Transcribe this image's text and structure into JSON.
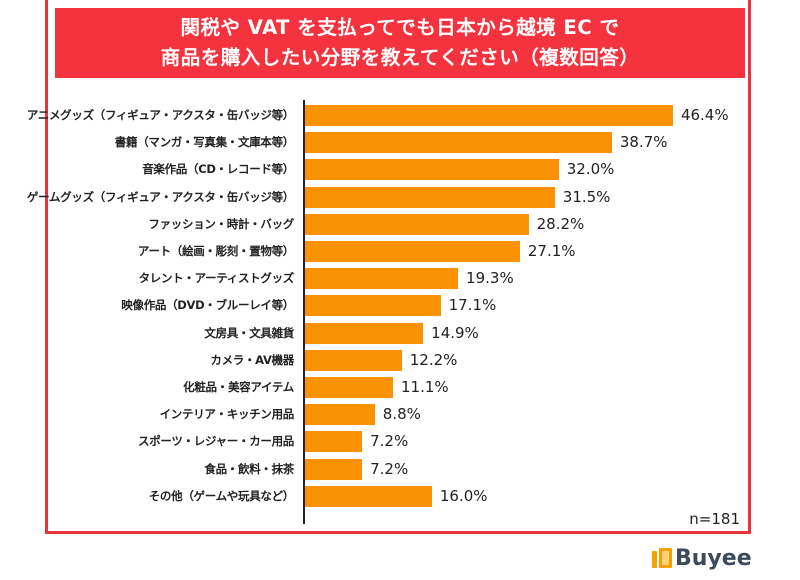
{
  "chart_data": {
    "type": "bar",
    "orientation": "horizontal",
    "title_lines": [
      "関税や VAT を支払ってでも日本から越境 EC で",
      "商品を購入したい分野を教えてください（複数回答）"
    ],
    "categories": [
      "アニメグッズ（フィギュア・アクスタ・缶バッジ等）",
      "書籍（マンガ・写真集・文庫本等）",
      "音楽作品（CD・レコード等）",
      "ゲームグッズ（フィギュア・アクスタ・缶バッジ等）",
      "ファッション・時計・バッグ",
      "アート（絵画・彫刻・置物等）",
      "タレント・アーティストグッズ",
      "映像作品（DVD・ブルーレイ等）",
      "文房具・文具雑貨",
      "カメラ・AV機器",
      "化粧品・美容アイテム",
      "インテリア・キッチン用品",
      "スポーツ・レジャー・カー用品",
      "食品・飲料・抹茶",
      "その他（ゲームや玩具など）"
    ],
    "values": [
      46.4,
      38.7,
      32.0,
      31.5,
      28.2,
      27.1,
      19.3,
      17.1,
      14.9,
      12.2,
      11.1,
      8.8,
      7.2,
      7.2,
      16.0
    ],
    "value_labels": [
      "46.4%",
      "38.7%",
      "32.0%",
      "31.5%",
      "28.2%",
      "27.1%",
      "19.3%",
      "17.1%",
      "14.9%",
      "12.2%",
      "11.1%",
      "8.8%",
      "7.2%",
      "7.2%",
      "16.0%"
    ],
    "unit": "%",
    "xlim": [
      0,
      50
    ],
    "grid": false,
    "legend": "none",
    "note": "n=181",
    "bar_color": "#fb9104",
    "header_color": "#f5333f",
    "frame_color": "#e8323c"
  },
  "brand": {
    "name": "Buyee",
    "icon": "shopping-bag-icon"
  }
}
